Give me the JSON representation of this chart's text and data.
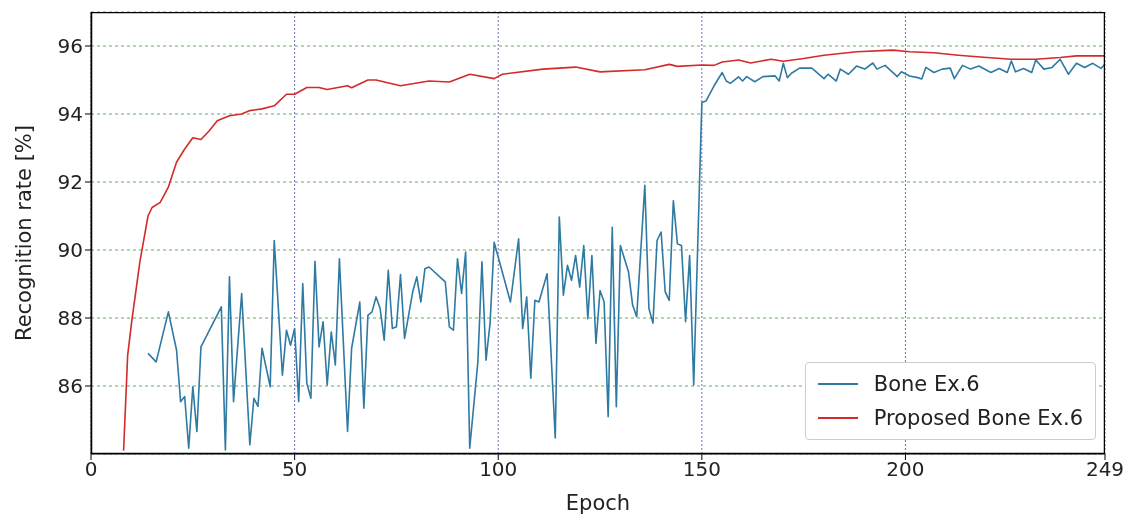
{
  "chart_data": {
    "type": "line",
    "xlabel": "Epoch",
    "ylabel": "Recognition rate [%]",
    "xlim": [
      0,
      249
    ],
    "xticks": [
      0,
      50,
      100,
      150,
      200,
      249
    ],
    "ylim": [
      84,
      97
    ],
    "yticks": [
      86,
      88,
      90,
      92,
      94,
      96
    ],
    "grid": true,
    "legend": "bottom right",
    "marker": "none",
    "line_style": "solid",
    "series": [
      {
        "name": "Bone Ex.6",
        "color": "#2e7aa3",
        "x": [
          14,
          16,
          19,
          21,
          22,
          23,
          24,
          25,
          26,
          27,
          32,
          33,
          34,
          35,
          37,
          39,
          40,
          41,
          42,
          44,
          45,
          47,
          48,
          49,
          50,
          51,
          52,
          53,
          54,
          55,
          56,
          57,
          58,
          59,
          60,
          61,
          63,
          64,
          66,
          67,
          68,
          69,
          70,
          71,
          72,
          73,
          74,
          75,
          76,
          77,
          79,
          80,
          81,
          82,
          83,
          87,
          88,
          89,
          90,
          91,
          92,
          93,
          95,
          96,
          97,
          98,
          99,
          103,
          105,
          106,
          107,
          108,
          109,
          110,
          112,
          114,
          115,
          116,
          117,
          118,
          119,
          120,
          121,
          122,
          123,
          124,
          125,
          126,
          127,
          128,
          129,
          130,
          132,
          133,
          134,
          136,
          137,
          138,
          139,
          140,
          141,
          142,
          143,
          144,
          145,
          146,
          147,
          148,
          150,
          151,
          153,
          155,
          156,
          157,
          159,
          160,
          161,
          163,
          165,
          168,
          169,
          170,
          171,
          172,
          174,
          177,
          180,
          181,
          183,
          184,
          186,
          188,
          190,
          192,
          193,
          195,
          198,
          199,
          201,
          203,
          204,
          205,
          207,
          209,
          211,
          212,
          214,
          216,
          218,
          221,
          223,
          225,
          226,
          227,
          229,
          231,
          232,
          234,
          236,
          238,
          240,
          242,
          244,
          246,
          248,
          249
        ],
        "values": [
          86.96,
          86.71,
          88.18,
          87.06,
          85.54,
          85.69,
          84.17,
          85.98,
          84.66,
          87.15,
          88.33,
          84.12,
          89.21,
          85.54,
          88.72,
          84.27,
          85.64,
          85.4,
          87.11,
          85.98,
          90.28,
          86.32,
          87.64,
          87.2,
          87.69,
          85.54,
          89.01,
          86.08,
          85.64,
          89.67,
          87.15,
          87.89,
          86.03,
          87.59,
          86.62,
          89.74,
          84.66,
          87.11,
          88.47,
          85.35,
          88.08,
          88.18,
          88.62,
          88.28,
          87.35,
          89.4,
          87.69,
          87.74,
          89.28,
          87.4,
          88.77,
          89.21,
          88.47,
          89.45,
          89.5,
          89.06,
          87.74,
          87.64,
          89.74,
          88.72,
          89.94,
          84.17,
          86.71,
          89.65,
          86.76,
          87.85,
          90.23,
          88.47,
          90.33,
          87.69,
          88.62,
          86.23,
          88.52,
          88.47,
          89.3,
          84.47,
          90.97,
          88.67,
          89.55,
          89.11,
          89.84,
          88.91,
          90.13,
          87.98,
          89.84,
          87.25,
          88.81,
          88.47,
          85.1,
          90.67,
          85.39,
          90.13,
          89.35,
          88.38,
          88.04,
          91.9,
          88.28,
          87.85,
          90.28,
          90.53,
          88.77,
          88.52,
          91.45,
          90.18,
          90.13,
          87.89,
          89.84,
          86.03,
          94.34,
          94.38,
          94.83,
          95.22,
          94.97,
          94.9,
          95.09,
          94.97,
          95.1,
          94.95,
          95.1,
          95.12,
          94.97,
          95.49,
          95.07,
          95.2,
          95.35,
          95.35,
          95.04,
          95.17,
          94.97,
          95.32,
          95.17,
          95.41,
          95.32,
          95.5,
          95.32,
          95.43,
          95.1,
          95.24,
          95.12,
          95.07,
          95.03,
          95.37,
          95.22,
          95.32,
          95.35,
          95.04,
          95.43,
          95.32,
          95.41,
          95.22,
          95.34,
          95.22,
          95.56,
          95.24,
          95.34,
          95.22,
          95.59,
          95.32,
          95.37,
          95.61,
          95.17,
          95.49,
          95.37,
          95.49,
          95.34,
          95.47
        ]
      },
      {
        "name": "Proposed Bone Ex.6",
        "color": "#d42a2a",
        "x": [
          8,
          9,
          10,
          12,
          14,
          15,
          17,
          19,
          21,
          23,
          25,
          27,
          29,
          31,
          34,
          37,
          39,
          42,
          45,
          48,
          50,
          53,
          56,
          58,
          63,
          64,
          68,
          70,
          76,
          83,
          88,
          93,
          99,
          101,
          111,
          119,
          125,
          136,
          142,
          144,
          150,
          153,
          155,
          159,
          162,
          167,
          170,
          175,
          180,
          188,
          197,
          201,
          207,
          213,
          220,
          226,
          232,
          238,
          242,
          249
        ],
        "values": [
          84.1,
          86.9,
          87.9,
          89.65,
          91.0,
          91.25,
          91.4,
          91.85,
          92.58,
          92.97,
          93.3,
          93.25,
          93.5,
          93.8,
          93.95,
          94.0,
          94.1,
          94.15,
          94.24,
          94.58,
          94.58,
          94.78,
          94.78,
          94.72,
          94.83,
          94.77,
          95.0,
          95.0,
          94.83,
          94.97,
          94.94,
          95.17,
          95.04,
          95.17,
          95.32,
          95.38,
          95.24,
          95.3,
          95.46,
          95.4,
          95.44,
          95.43,
          95.53,
          95.59,
          95.5,
          95.61,
          95.55,
          95.63,
          95.73,
          95.83,
          95.88,
          95.83,
          95.8,
          95.73,
          95.66,
          95.61,
          95.61,
          95.66,
          95.71,
          95.71
        ]
      }
    ]
  }
}
